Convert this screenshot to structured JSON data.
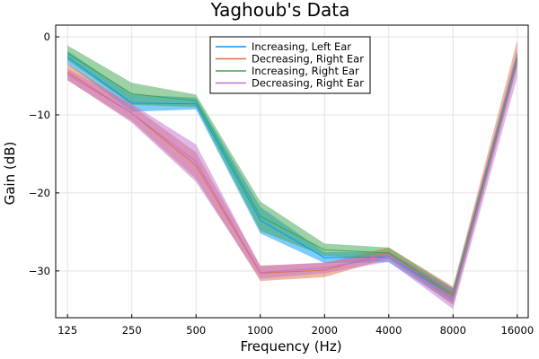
{
  "chart_data": {
    "type": "line",
    "title": "Yaghoub's Data",
    "xlabel": "Frequency (Hz)",
    "ylabel": "Gain (dB)",
    "x_scale": "log2",
    "x": [
      125,
      250,
      500,
      1000,
      2000,
      4000,
      8000,
      16000
    ],
    "x_tick_labels": [
      "125",
      "250",
      "500",
      "1000",
      "2000",
      "4000",
      "8000",
      "16000"
    ],
    "xlim": [
      110,
      18000
    ],
    "ylim": [
      -36,
      1.5
    ],
    "y_ticks": [
      0,
      -10,
      -20,
      -30
    ],
    "y_tick_labels": [
      "0",
      "−10",
      "−20",
      "−30"
    ],
    "grid": true,
    "legend_position": "top-center",
    "series": [
      {
        "name": "Increasing, Left Ear",
        "color": "#009AFA",
        "values": [
          -2.6,
          -8.5,
          -8.6,
          -23.5,
          -28.3,
          -28.2,
          -33.2,
          -2.8
        ],
        "lower": [
          -3.5,
          -9.6,
          -9.3,
          -25.2,
          -29.0,
          -28.9,
          -34.2,
          -3.6
        ],
        "upper": [
          -1.8,
          -7.4,
          -7.8,
          -21.8,
          -27.6,
          -27.6,
          -32.3,
          -2.0
        ]
      },
      {
        "name": "Decreasing, Right Ear",
        "color": "#E26F46",
        "values": [
          -4.5,
          -9.8,
          -16.5,
          -30.3,
          -29.9,
          -27.7,
          -33.2,
          -2.8
        ],
        "lower": [
          -5.6,
          -10.8,
          -18.2,
          -31.3,
          -30.8,
          -28.4,
          -34.4,
          -4.0
        ],
        "upper": [
          -3.4,
          -8.8,
          -14.8,
          -29.3,
          -29.0,
          -27.0,
          -32.0,
          -0.4
        ]
      },
      {
        "name": "Increasing, Right Ear",
        "color": "#3DA44D",
        "values": [
          -2.1,
          -7.3,
          -8.2,
          -23.0,
          -27.3,
          -27.7,
          -33.0,
          -2.8
        ],
        "lower": [
          -3.0,
          -8.7,
          -9.0,
          -24.9,
          -28.1,
          -28.4,
          -33.8,
          -3.6
        ],
        "upper": [
          -1.1,
          -5.9,
          -7.4,
          -21.1,
          -26.5,
          -27.0,
          -32.2,
          -2.0
        ]
      },
      {
        "name": "Decreasing, Right Ear",
        "color": "#C271D2",
        "values": [
          -4.8,
          -9.8,
          -16.0,
          -30.2,
          -29.6,
          -28.2,
          -33.6,
          -3.2
        ],
        "lower": [
          -5.5,
          -11.0,
          -18.6,
          -31.0,
          -30.3,
          -28.8,
          -34.9,
          -5.2
        ],
        "upper": [
          -4.1,
          -8.6,
          -13.8,
          -29.4,
          -28.9,
          -27.6,
          -32.3,
          -1.6
        ]
      }
    ]
  }
}
